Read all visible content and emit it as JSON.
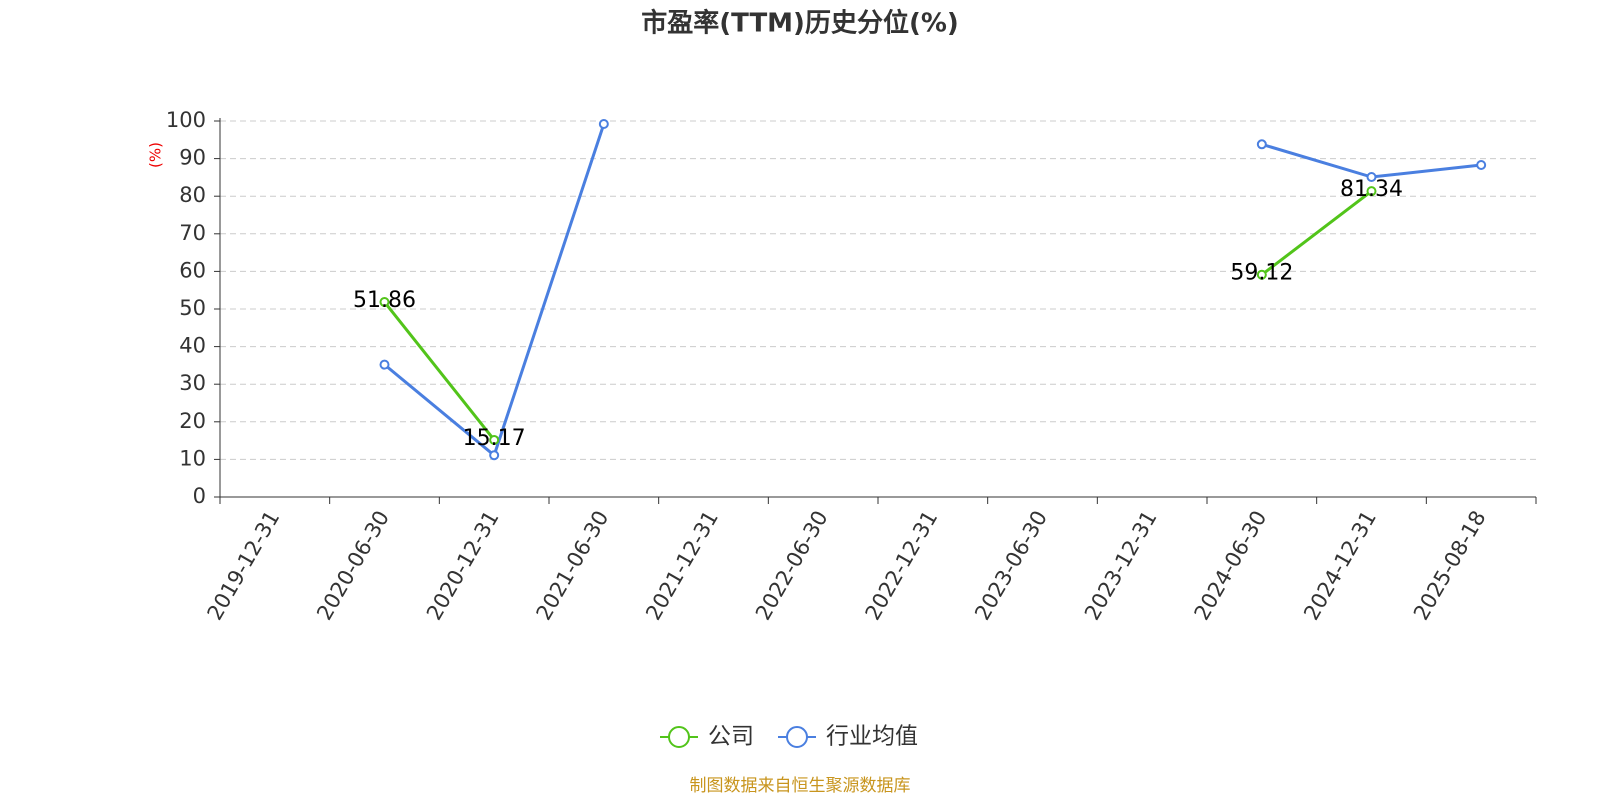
{
  "chart_data": {
    "type": "line",
    "title": "市盈率(TTM)历史分位(%)",
    "y_label": "(%)",
    "categories": [
      "2019-12-31",
      "2020-06-30",
      "2020-12-31",
      "2021-06-30",
      "2021-12-31",
      "2022-06-30",
      "2022-12-31",
      "2023-06-30",
      "2023-12-31",
      "2024-06-30",
      "2024-12-31",
      "2025-08-18"
    ],
    "series": [
      {
        "name": "公司",
        "color": "#52c41a",
        "values": [
          null,
          51.86,
          15.17,
          null,
          null,
          null,
          null,
          null,
          null,
          59.12,
          81.34,
          null
        ]
      },
      {
        "name": "行业均值",
        "color": "#4a7fe0",
        "values": [
          null,
          35.2,
          11.1,
          99.2,
          null,
          null,
          null,
          null,
          null,
          93.8,
          85.1,
          88.3
        ]
      }
    ],
    "ylim": [
      0,
      100
    ],
    "yticks": [
      0,
      10,
      20,
      30,
      40,
      50,
      60,
      70,
      80,
      90,
      100
    ],
    "grid": true,
    "legend": "bottom",
    "source": "制图数据来自恒生聚源数据库"
  }
}
